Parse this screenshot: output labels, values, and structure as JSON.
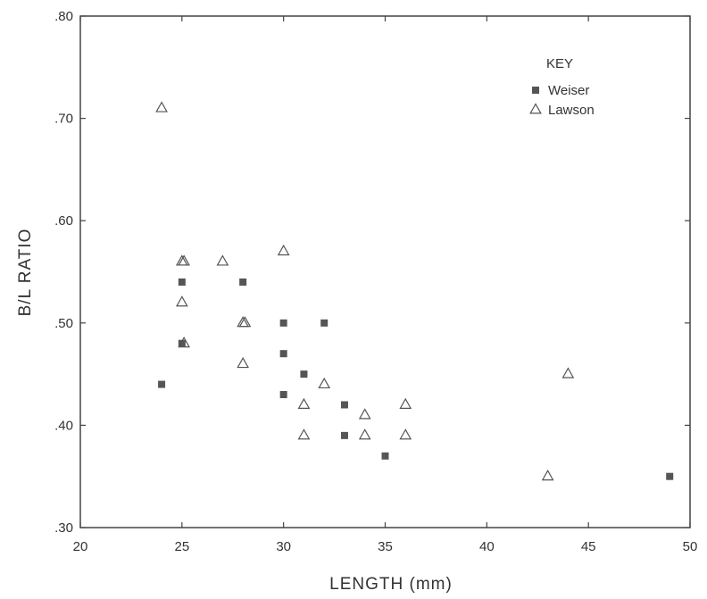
{
  "chart_data": {
    "type": "scatter",
    "title": "",
    "xlabel": "LENGTH (mm)",
    "ylabel": "B/L RATIO",
    "xlim": [
      20,
      50
    ],
    "ylim": [
      0.3,
      0.8
    ],
    "xticks": [
      20,
      25,
      30,
      35,
      40,
      45,
      50
    ],
    "xtick_labels": [
      "20",
      "25",
      "30",
      "35",
      "40",
      "45",
      "50"
    ],
    "yticks": [
      0.3,
      0.4,
      0.5,
      0.6,
      0.7,
      0.8
    ],
    "ytick_labels": [
      ".30",
      ".40",
      ".50",
      ".60",
      ".70",
      ".80"
    ],
    "grid": false,
    "legend": {
      "title": "KEY",
      "position": "top-right"
    },
    "series": [
      {
        "name": "Weiser",
        "marker": "filled-square",
        "color": "#555555",
        "points": [
          {
            "x": 24,
            "y": 0.44
          },
          {
            "x": 25,
            "y": 0.54
          },
          {
            "x": 25,
            "y": 0.48
          },
          {
            "x": 28,
            "y": 0.54
          },
          {
            "x": 30,
            "y": 0.5
          },
          {
            "x": 30,
            "y": 0.47
          },
          {
            "x": 30,
            "y": 0.43
          },
          {
            "x": 31,
            "y": 0.45
          },
          {
            "x": 32,
            "y": 0.5
          },
          {
            "x": 33,
            "y": 0.42
          },
          {
            "x": 33,
            "y": 0.39
          },
          {
            "x": 35,
            "y": 0.37
          },
          {
            "x": 49,
            "y": 0.35
          }
        ]
      },
      {
        "name": "Lawson",
        "marker": "open-triangle",
        "color": "#555555",
        "points": [
          {
            "x": 24,
            "y": 0.71
          },
          {
            "x": 25,
            "y": 0.56
          },
          {
            "x": 25.1,
            "y": 0.56
          },
          {
            "x": 25,
            "y": 0.52
          },
          {
            "x": 25.1,
            "y": 0.48
          },
          {
            "x": 27,
            "y": 0.56
          },
          {
            "x": 28,
            "y": 0.5
          },
          {
            "x": 28.1,
            "y": 0.5
          },
          {
            "x": 28,
            "y": 0.46
          },
          {
            "x": 30,
            "y": 0.57
          },
          {
            "x": 31,
            "y": 0.42
          },
          {
            "x": 31,
            "y": 0.39
          },
          {
            "x": 32,
            "y": 0.44
          },
          {
            "x": 34,
            "y": 0.41
          },
          {
            "x": 34,
            "y": 0.39
          },
          {
            "x": 36,
            "y": 0.42
          },
          {
            "x": 36,
            "y": 0.39
          },
          {
            "x": 43,
            "y": 0.35
          },
          {
            "x": 44,
            "y": 0.45
          }
        ]
      }
    ]
  }
}
